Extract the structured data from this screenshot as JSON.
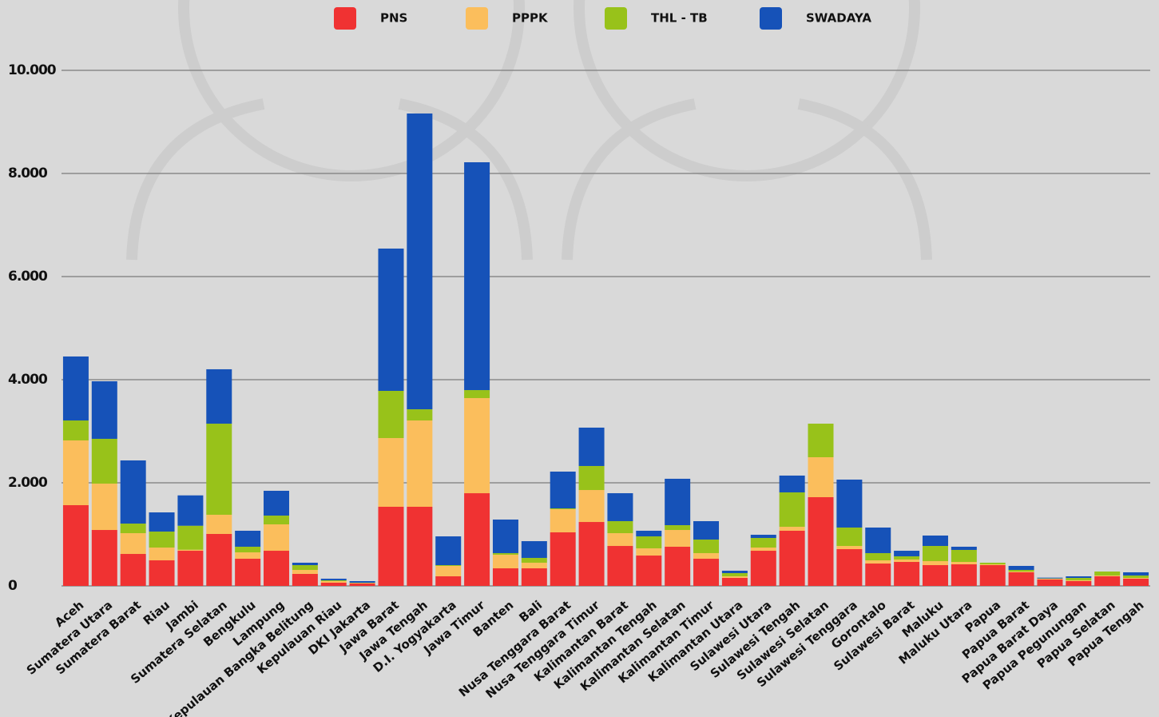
{
  "chart_data": {
    "type": "stacked_bar",
    "categories": [
      "Aceh",
      "Sumatera Utara",
      "Sumatera Barat",
      "Riau",
      "Jambi",
      "Sumatera Selatan",
      "Bengkulu",
      "Lampung",
      "Kepulauan Bangka Belitung",
      "Kepulauan Riau",
      "DKI Jakarta",
      "Jawa Barat",
      "Jawa Tengah",
      "D.I. Yogyakarta",
      "Jawa Timur",
      "Banten",
      "Bali",
      "Nusa Tenggara Barat",
      "Nusa Tenggara Timur",
      "Kalimantan Barat",
      "Kalimantan Tengah",
      "Kalimantan Selatan",
      "Kalimantan Timur",
      "Kalimantan Utara",
      "Sulawesi Utara",
      "Sulawesi Tengah",
      "Sulawesi Selatan",
      "Sulawesi Tenggara",
      "Gorontalo",
      "Sulawesi Barat",
      "Maluku",
      "Maluku Utara",
      "Papua",
      "Papua Barat",
      "Papua Barat Daya",
      "Papua Pegunungan",
      "Papua Selatan",
      "Papua Tengah"
    ],
    "series": [
      {
        "name": "PNS",
        "color": "#f03232",
        "values": [
          1566,
          1085,
          620,
          496,
          682,
          1008,
          527,
          682,
          233,
          62,
          47,
          1535,
          1535,
          186,
          1798,
          341,
          341,
          1039,
          1240,
          775,
          589,
          760,
          527,
          155,
          682,
          1070,
          1721,
          713,
          434,
          465,
          403,
          419,
          403,
          264,
          124,
          93,
          186,
          140
        ]
      },
      {
        "name": "PPPK",
        "color": "#fbbe5c",
        "values": [
          1256,
          899,
          403,
          248,
          20,
          372,
          124,
          512,
          77,
          31,
          10,
          1333,
          1674,
          202,
          1845,
          264,
          109,
          449,
          620,
          248,
          140,
          325,
          109,
          31,
          62,
          77,
          775,
          62,
          62,
          47,
          78,
          46,
          16,
          15,
          16,
          16,
          16,
          15
        ]
      },
      {
        "name": "THL - TB",
        "color": "#98c21a",
        "values": [
          387,
          869,
          186,
          310,
          465,
          1767,
          109,
          170,
          93,
          16,
          5,
          915,
          217,
          15,
          155,
          31,
          93,
          16,
          466,
          233,
          232,
          93,
          263,
          62,
          186,
          667,
          651,
          357,
          140,
          62,
          294,
          233,
          31,
          31,
          5,
          46,
          77,
          47
        ]
      },
      {
        "name": "SWADAYA",
        "color": "#1652b8",
        "values": [
          1241,
          1116,
          1225,
          372,
          589,
          1055,
          310,
          481,
          47,
          31,
          31,
          2760,
          5737,
          558,
          4419,
          651,
          325,
          713,
          744,
          542,
          109,
          900,
          357,
          47,
          62,
          326,
          0,
          930,
          496,
          108,
          202,
          62,
          0,
          78,
          15,
          31,
          0,
          62
        ]
      }
    ],
    "ylim": [
      0,
      10000
    ],
    "yticks": [
      0,
      {
        "value": 2000,
        "label": "2.000"
      },
      {
        "value": 4000,
        "label": "4.000"
      },
      {
        "value": 6000,
        "label": "6.000"
      },
      {
        "value": 8000,
        "label": "8.000"
      },
      {
        "value": 10000,
        "label": "10.000"
      }
    ],
    "grid": true,
    "legend": "top"
  }
}
